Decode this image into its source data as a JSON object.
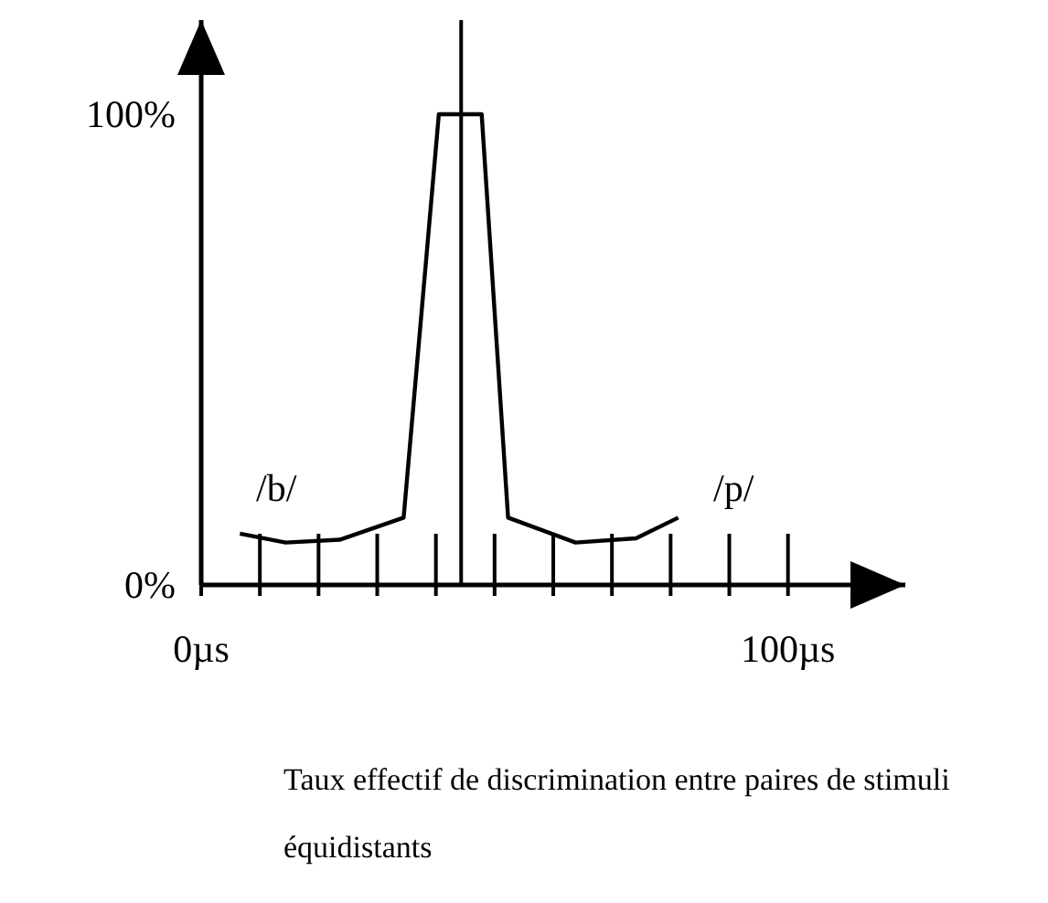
{
  "chart_data": {
    "type": "line",
    "color": "#000000",
    "x": [
      6.6,
      14.4,
      23.6,
      34.5,
      40.5,
      47.8,
      52.3,
      63.8,
      74.1,
      81.3
    ],
    "values": [
      10.9,
      9,
      9.6,
      14.3,
      100,
      100,
      14.3,
      9,
      9.9,
      14.3
    ],
    "xlim": [
      0,
      120
    ],
    "ylim": [
      0,
      120
    ],
    "xticks": [
      {
        "value": 0,
        "label": "0µs"
      },
      {
        "value": 10,
        "label": null
      },
      {
        "value": 20,
        "label": null
      },
      {
        "value": 30,
        "label": null
      },
      {
        "value": 40,
        "label": null
      },
      {
        "value": 50,
        "label": null
      },
      {
        "value": 60,
        "label": null
      },
      {
        "value": 70,
        "label": null
      },
      {
        "value": 80,
        "label": null
      },
      {
        "value": 90,
        "label": null
      },
      {
        "value": 100,
        "label": "100µs"
      }
    ],
    "yticks": [
      {
        "value": 0,
        "label": "0%"
      },
      {
        "value": 100,
        "label": "100%"
      }
    ],
    "ref_lines": [
      {
        "axis": "x",
        "value": 44.3,
        "color": "#000000"
      }
    ],
    "grid": false,
    "legend": false,
    "annotations": [
      "/b/",
      "/p/",
      "Taux effectif de discrimination entre paires de stimuli équidistants"
    ]
  }
}
